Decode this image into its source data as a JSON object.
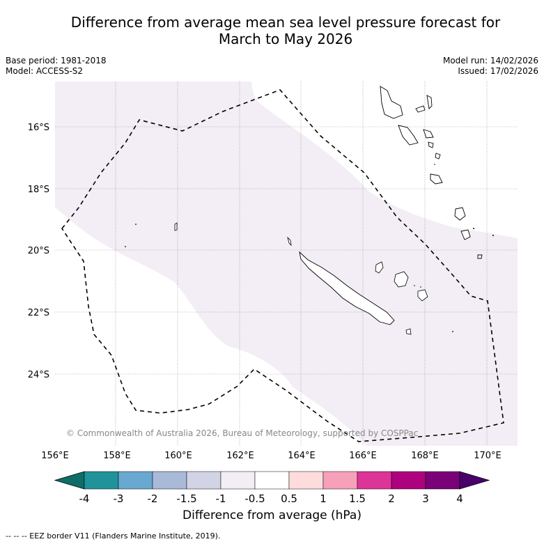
{
  "title": {
    "line1": "Difference from average mean sea level pressure forecast for",
    "line2": "March to May 2026"
  },
  "meta": {
    "base_period": "Base period: 1981-2018",
    "model": "Model: ACCESS-S2",
    "model_run": "Model run: 14/02/2026",
    "issued": "Issued: 17/02/2026"
  },
  "map": {
    "latitude_labels": [
      "16°S",
      "18°S",
      "20°S",
      "22°S",
      "24°S"
    ],
    "longitude_labels": [
      "156°E",
      "158°E",
      "160°E",
      "162°E",
      "164°E",
      "166°E",
      "168°E",
      "170°E"
    ],
    "copyright": "© Commonwealth of Australia 2026, Bureau of Meteorology, supported by COSPPac",
    "anomaly_fill_color": "#f3edf5",
    "eez_line_color": "#000000"
  },
  "colorbar": {
    "ticks": [
      "-4",
      "-3",
      "-2",
      "-1.5",
      "-1",
      "-0.5",
      "0.5",
      "1",
      "1.5",
      "2",
      "3",
      "4"
    ],
    "colors": [
      "#0d6e68",
      "#1f9399",
      "#68a8d1",
      "#a8bad8",
      "#d2d4e6",
      "#f3edf5",
      "#ffffff",
      "#fedcdc",
      "#f7a0ba",
      "#dd3497",
      "#ae017e",
      "#7a0177",
      "#49006a"
    ],
    "label": "Difference from average (hPa)"
  },
  "footnote": "--  --  -- EEZ border V11 (Flanders Marine Institute, 2019)."
}
